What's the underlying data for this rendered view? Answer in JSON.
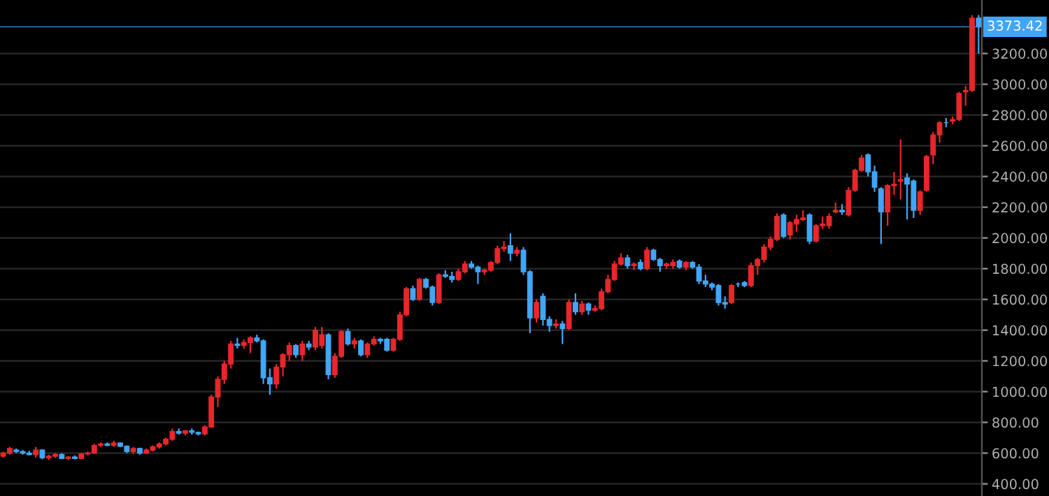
{
  "chart_data": {
    "type": "candlestick",
    "categories": [
      null,
      null,
      null,
      null,
      null,
      null,
      null,
      null,
      null,
      null,
      null,
      null,
      null,
      null,
      null,
      null,
      null,
      null,
      null,
      null,
      null,
      null,
      null,
      null,
      null,
      null,
      null,
      null,
      null,
      null,
      null,
      null,
      null,
      null,
      null,
      null,
      null,
      null,
      null,
      null,
      null,
      null,
      null,
      null,
      null,
      null,
      null,
      null,
      null,
      null,
      null,
      null,
      null,
      null,
      null,
      null,
      null,
      null,
      null,
      null,
      null,
      null,
      null,
      null,
      null,
      null,
      null,
      null,
      null,
      null,
      null,
      null,
      null,
      null,
      null,
      null,
      null,
      null,
      null,
      null,
      null,
      null,
      null,
      null,
      null,
      null,
      null,
      null,
      null,
      null,
      null,
      null,
      null,
      null,
      null,
      null,
      null,
      null,
      null,
      null,
      null,
      null,
      null,
      null,
      null,
      null,
      null,
      null,
      null,
      null,
      null,
      null,
      null,
      null,
      null,
      null,
      null,
      null,
      null,
      null,
      null,
      null,
      null,
      null,
      null,
      null,
      null,
      null,
      null,
      null,
      null,
      null,
      null,
      null,
      null,
      null,
      null,
      null,
      null,
      null,
      null,
      null,
      null,
      null,
      null,
      null,
      null,
      null,
      null,
      null,
      null
    ],
    "ohlc": [
      [
        580,
        610,
        570,
        600
      ],
      [
        600,
        640,
        590,
        630
      ],
      [
        620,
        630,
        600,
        610
      ],
      [
        610,
        620,
        590,
        600
      ],
      [
        600,
        615,
        585,
        590
      ],
      [
        590,
        640,
        570,
        620
      ],
      [
        620,
        625,
        560,
        570
      ],
      [
        570,
        590,
        555,
        580
      ],
      [
        580,
        600,
        570,
        590
      ],
      [
        590,
        600,
        560,
        565
      ],
      [
        565,
        580,
        555,
        575
      ],
      [
        575,
        585,
        560,
        565
      ],
      [
        565,
        600,
        560,
        595
      ],
      [
        595,
        610,
        585,
        600
      ],
      [
        600,
        660,
        595,
        650
      ],
      [
        650,
        670,
        640,
        660
      ],
      [
        660,
        670,
        645,
        650
      ],
      [
        650,
        680,
        640,
        665
      ],
      [
        665,
        670,
        640,
        645
      ],
      [
        645,
        650,
        600,
        610
      ],
      [
        610,
        640,
        595,
        630
      ],
      [
        630,
        635,
        590,
        600
      ],
      [
        600,
        630,
        595,
        620
      ],
      [
        620,
        650,
        610,
        640
      ],
      [
        640,
        670,
        630,
        660
      ],
      [
        660,
        700,
        650,
        690
      ],
      [
        690,
        760,
        680,
        740
      ],
      [
        740,
        760,
        720,
        730
      ],
      [
        730,
        750,
        715,
        745
      ],
      [
        745,
        760,
        720,
        735
      ],
      [
        735,
        740,
        715,
        725
      ],
      [
        725,
        780,
        715,
        770
      ],
      [
        770,
        980,
        765,
        965
      ],
      [
        965,
        1100,
        900,
        1080
      ],
      [
        1080,
        1200,
        1050,
        1180
      ],
      [
        1180,
        1330,
        1150,
        1310
      ],
      [
        1310,
        1350,
        1280,
        1300
      ],
      [
        1300,
        1340,
        1280,
        1320
      ],
      [
        1320,
        1360,
        1250,
        1350
      ],
      [
        1350,
        1370,
        1320,
        1330
      ],
      [
        1330,
        1340,
        1050,
        1090
      ],
      [
        1090,
        1150,
        980,
        1050
      ],
      [
        1050,
        1180,
        1020,
        1160
      ],
      [
        1160,
        1250,
        1100,
        1240
      ],
      [
        1240,
        1320,
        1200,
        1300
      ],
      [
        1300,
        1310,
        1220,
        1240
      ],
      [
        1240,
        1330,
        1200,
        1310
      ],
      [
        1310,
        1330,
        1270,
        1290
      ],
      [
        1290,
        1420,
        1270,
        1400
      ],
      [
        1300,
        1420,
        1280,
        1370
      ],
      [
        1370,
        1380,
        1080,
        1110
      ],
      [
        1110,
        1250,
        1090,
        1230
      ],
      [
        1230,
        1400,
        1220,
        1390
      ],
      [
        1390,
        1410,
        1300,
        1310
      ],
      [
        1310,
        1350,
        1280,
        1330
      ],
      [
        1330,
        1340,
        1230,
        1240
      ],
      [
        1240,
        1320,
        1220,
        1310
      ],
      [
        1310,
        1360,
        1300,
        1340
      ],
      [
        1340,
        1350,
        1310,
        1330
      ],
      [
        1340,
        1350,
        1260,
        1270
      ],
      [
        1270,
        1350,
        1260,
        1340
      ],
      [
        1340,
        1520,
        1330,
        1500
      ],
      [
        1500,
        1680,
        1490,
        1670
      ],
      [
        1670,
        1690,
        1590,
        1600
      ],
      [
        1600,
        1740,
        1590,
        1730
      ],
      [
        1730,
        1740,
        1670,
        1680
      ],
      [
        1680,
        1690,
        1560,
        1580
      ],
      [
        1580,
        1770,
        1570,
        1760
      ],
      [
        1760,
        1790,
        1740,
        1750
      ],
      [
        1750,
        1780,
        1710,
        1730
      ],
      [
        1730,
        1800,
        1720,
        1780
      ],
      [
        1780,
        1850,
        1770,
        1830
      ],
      [
        1830,
        1850,
        1800,
        1810
      ],
      [
        1810,
        1820,
        1700,
        1780
      ],
      [
        1780,
        1800,
        1760,
        1790
      ],
      [
        1790,
        1850,
        1780,
        1840
      ],
      [
        1840,
        1950,
        1830,
        1930
      ],
      [
        1930,
        1980,
        1910,
        1940
      ],
      [
        1950,
        2030,
        1850,
        1900
      ],
      [
        1900,
        1940,
        1880,
        1920
      ],
      [
        1920,
        1940,
        1760,
        1780
      ],
      [
        1780,
        1790,
        1380,
        1480
      ],
      [
        1480,
        1600,
        1450,
        1580
      ],
      [
        1620,
        1640,
        1430,
        1470
      ],
      [
        1470,
        1490,
        1390,
        1430
      ],
      [
        1430,
        1470,
        1410,
        1440
      ],
      [
        1440,
        1460,
        1310,
        1410
      ],
      [
        1410,
        1600,
        1400,
        1580
      ],
      [
        1580,
        1640,
        1500,
        1520
      ],
      [
        1520,
        1590,
        1500,
        1570
      ],
      [
        1570,
        1580,
        1500,
        1530
      ],
      [
        1530,
        1560,
        1520,
        1540
      ],
      [
        1540,
        1670,
        1530,
        1650
      ],
      [
        1650,
        1760,
        1640,
        1730
      ],
      [
        1730,
        1850,
        1720,
        1830
      ],
      [
        1830,
        1900,
        1820,
        1870
      ],
      [
        1870,
        1890,
        1800,
        1820
      ],
      [
        1820,
        1840,
        1790,
        1830
      ],
      [
        1840,
        1860,
        1790,
        1800
      ],
      [
        1800,
        1940,
        1790,
        1920
      ],
      [
        1920,
        1930,
        1850,
        1860
      ],
      [
        1860,
        1870,
        1780,
        1820
      ],
      [
        1820,
        1840,
        1800,
        1830
      ],
      [
        1820,
        1860,
        1800,
        1840
      ],
      [
        1850,
        1860,
        1800,
        1810
      ],
      [
        1810,
        1850,
        1790,
        1840
      ],
      [
        1840,
        1850,
        1800,
        1810
      ],
      [
        1810,
        1830,
        1700,
        1720
      ],
      [
        1720,
        1760,
        1680,
        1700
      ],
      [
        1700,
        1710,
        1660,
        1680
      ],
      [
        1690,
        1700,
        1560,
        1580
      ],
      [
        1580,
        1620,
        1540,
        1570
      ],
      [
        1580,
        1700,
        1570,
        1690
      ],
      [
        1700,
        1710,
        1680,
        1700
      ],
      [
        1710,
        1720,
        1680,
        1690
      ],
      [
        1690,
        1840,
        1680,
        1820
      ],
      [
        1820,
        1870,
        1760,
        1860
      ],
      [
        1860,
        1960,
        1840,
        1940
      ],
      [
        1940,
        2010,
        1920,
        1990
      ],
      [
        1990,
        2160,
        1980,
        2140
      ],
      [
        2150,
        2160,
        2000,
        2010
      ],
      [
        2020,
        2110,
        1990,
        2100
      ],
      [
        2090,
        2150,
        2040,
        2120
      ],
      [
        2120,
        2180,
        2110,
        2130
      ],
      [
        2150,
        2160,
        1960,
        1980
      ],
      [
        1980,
        2090,
        1970,
        2080
      ],
      [
        2080,
        2140,
        2060,
        2090
      ],
      [
        2080,
        2160,
        2060,
        2140
      ],
      [
        2170,
        2230,
        2160,
        2180
      ],
      [
        2180,
        2220,
        2150,
        2170
      ],
      [
        2150,
        2330,
        2140,
        2310
      ],
      [
        2310,
        2450,
        2300,
        2440
      ],
      [
        2440,
        2540,
        2430,
        2520
      ],
      [
        2540,
        2550,
        2400,
        2430
      ],
      [
        2430,
        2470,
        2300,
        2330
      ],
      [
        2320,
        2330,
        1960,
        2170
      ],
      [
        2170,
        2350,
        2080,
        2340
      ],
      [
        2340,
        2430,
        2280,
        2350
      ],
      [
        2370,
        2640,
        2250,
        2380
      ],
      [
        2390,
        2420,
        2120,
        2350
      ],
      [
        2370,
        2380,
        2130,
        2180
      ],
      [
        2180,
        2310,
        2150,
        2300
      ],
      [
        2310,
        2540,
        2300,
        2530
      ],
      [
        2540,
        2690,
        2480,
        2670
      ],
      [
        2670,
        2760,
        2620,
        2750
      ],
      [
        2750,
        2780,
        2720,
        2750
      ],
      [
        2760,
        2790,
        2740,
        2770
      ],
      [
        2770,
        2950,
        2760,
        2940
      ],
      [
        2950,
        2990,
        2860,
        2960
      ],
      [
        2960,
        3450,
        2950,
        3430
      ],
      [
        3430,
        3450,
        3200,
        3373.42
      ]
    ],
    "colors": [
      "#e8262b",
      "#e8262b",
      "#42a5f5",
      "#42a5f5",
      "#42a5f5",
      "#e8262b",
      "#42a5f5",
      "#e8262b",
      "#e8262b",
      "#42a5f5",
      "#e8262b",
      "#42a5f5",
      "#e8262b",
      "#e8262b",
      "#e8262b",
      "#e8262b",
      "#42a5f5",
      "#e8262b",
      "#42a5f5",
      "#42a5f5",
      "#e8262b",
      "#42a5f5",
      "#e8262b",
      "#e8262b",
      "#e8262b",
      "#e8262b",
      "#e8262b",
      "#42a5f5",
      "#e8262b",
      "#42a5f5",
      "#42a5f5",
      "#e8262b",
      "#e8262b",
      "#e8262b",
      "#e8262b",
      "#e8262b",
      "#42a5f5",
      "#e8262b",
      "#e8262b",
      "#42a5f5",
      "#42a5f5",
      "#42a5f5",
      "#e8262b",
      "#e8262b",
      "#e8262b",
      "#42a5f5",
      "#e8262b",
      "#42a5f5",
      "#e8262b",
      "#e8262b",
      "#42a5f5",
      "#e8262b",
      "#e8262b",
      "#42a5f5",
      "#e8262b",
      "#42a5f5",
      "#e8262b",
      "#e8262b",
      "#42a5f5",
      "#42a5f5",
      "#e8262b",
      "#e8262b",
      "#e8262b",
      "#42a5f5",
      "#e8262b",
      "#42a5f5",
      "#42a5f5",
      "#e8262b",
      "#42a5f5",
      "#42a5f5",
      "#e8262b",
      "#e8262b",
      "#42a5f5",
      "#42a5f5",
      "#e8262b",
      "#e8262b",
      "#e8262b",
      "#e8262b",
      "#42a5f5",
      "#e8262b",
      "#42a5f5",
      "#42a5f5",
      "#e8262b",
      "#42a5f5",
      "#42a5f5",
      "#e8262b",
      "#42a5f5",
      "#e8262b",
      "#42a5f5",
      "#e8262b",
      "#42a5f5",
      "#e8262b",
      "#e8262b",
      "#e8262b",
      "#e8262b",
      "#e8262b",
      "#42a5f5",
      "#e8262b",
      "#42a5f5",
      "#e8262b",
      "#42a5f5",
      "#42a5f5",
      "#e8262b",
      "#e8262b",
      "#42a5f5",
      "#e8262b",
      "#42a5f5",
      "#42a5f5",
      "#42a5f5",
      "#42a5f5",
      "#42a5f5",
      "#42a5f5",
      "#e8262b",
      "#42a5f5",
      "#42a5f5",
      "#e8262b",
      "#e8262b",
      "#e8262b",
      "#e8262b",
      "#e8262b",
      "#42a5f5",
      "#e8262b",
      "#e8262b",
      "#e8262b",
      "#42a5f5",
      "#e8262b",
      "#e8262b",
      "#e8262b",
      "#e8262b",
      "#42a5f5",
      "#e8262b",
      "#e8262b",
      "#e8262b",
      "#42a5f5",
      "#42a5f5",
      "#42a5f5",
      "#e8262b",
      "#e8262b",
      "#e8262b",
      "#42a5f5",
      "#42a5f5",
      "#e8262b",
      "#e8262b",
      "#e8262b",
      "#e8262b",
      "#42a5f5",
      "#e8262b",
      "#e8262b",
      "#e8262b",
      "#e8262b",
      "#42a5f5"
    ],
    "ylim": [
      321,
      3548
    ],
    "yticks": [
      {
        "value": 400,
        "label": "400.00"
      },
      {
        "value": 600,
        "label": "600.00"
      },
      {
        "value": 800,
        "label": "800.00"
      },
      {
        "value": 1000,
        "label": "1000.00"
      },
      {
        "value": 1200,
        "label": "1200.00"
      },
      {
        "value": 1400,
        "label": "1400.00"
      },
      {
        "value": 1600,
        "label": "1600.00"
      },
      {
        "value": 1800,
        "label": "1800.00"
      },
      {
        "value": 2000,
        "label": "2000.00"
      },
      {
        "value": 2200,
        "label": "2200.00"
      },
      {
        "value": 2400,
        "label": "2400.00"
      },
      {
        "value": 2600,
        "label": "2600.00"
      },
      {
        "value": 2800,
        "label": "2800.00"
      },
      {
        "value": 3000,
        "label": "3000.00"
      },
      {
        "value": 3200,
        "label": "3200.00"
      }
    ],
    "grid": "y",
    "ref_lines": [
      {
        "axis": "y",
        "value": 3373.42,
        "label": "3373.42",
        "color": "#42a5f5"
      }
    ]
  }
}
